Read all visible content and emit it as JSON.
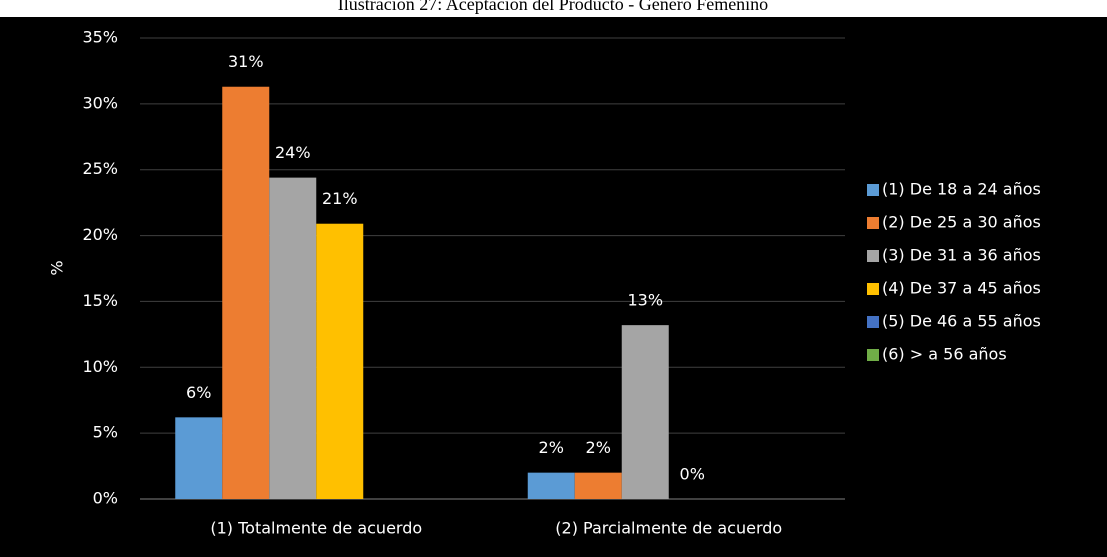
{
  "chart_data": {
    "type": "bar",
    "title": "Ilustración 27: Aceptación del Producto - Género Femenino",
    "y_label": "%",
    "categories": [
      "(1) Totalmente de acuerdo",
      "(2) Parcialmente de acuerdo"
    ],
    "series": [
      {
        "name": "(1) De 18 a 24 años",
        "color": "#5b9bd5",
        "values": [
          6.2,
          2.0
        ],
        "value_labels": [
          "6%",
          "2%"
        ]
      },
      {
        "name": "(2) De 25 a 30 años",
        "color": "#ed7d31",
        "values": [
          31.3,
          2.0
        ],
        "value_labels": [
          "31%",
          "2%"
        ]
      },
      {
        "name": "(3) De 31 a 36 años",
        "color": "#a5a5a5",
        "values": [
          24.4,
          13.2
        ],
        "value_labels": [
          "24%",
          "13%"
        ]
      },
      {
        "name": "(4) De 37 a 45 años",
        "color": "#ffc000",
        "values": [
          20.9,
          0
        ],
        "value_labels": [
          "21%",
          "0%"
        ]
      },
      {
        "name": "(5) De 46 a 55 años",
        "color": "#4472c4",
        "values": [
          0,
          0
        ],
        "value_labels": [
          null,
          null
        ]
      },
      {
        "name": "(6) > a 56 años",
        "color": "#70ad47",
        "values": [
          0,
          0
        ],
        "value_labels": [
          null,
          null
        ]
      }
    ],
    "ylim": [
      0,
      35
    ],
    "yticks": [
      {
        "value": 0,
        "label": "0%"
      },
      {
        "value": 5,
        "label": "5%"
      },
      {
        "value": 10,
        "label": "10%"
      },
      {
        "value": 15,
        "label": "15%"
      },
      {
        "value": 20,
        "label": "20%"
      },
      {
        "value": 25,
        "label": "25%"
      },
      {
        "value": 30,
        "label": "30%"
      },
      {
        "value": 35,
        "label": "35%"
      }
    ],
    "grid": true,
    "legend": "right"
  }
}
